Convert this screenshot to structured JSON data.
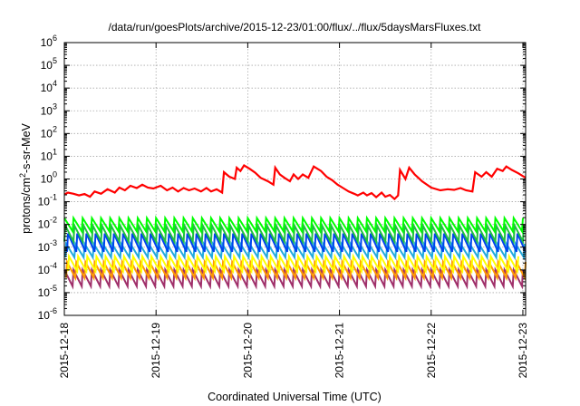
{
  "chart_data": {
    "type": "line",
    "title": "/data/run/goesPlots/archive/2015-12-23/01:00/flux/../flux/5daysMarsFluxes.txt",
    "xlabel": "Coordinated Universal Time (UTC)",
    "ylabel": {
      "base": "protons/cm",
      "sup": "2",
      "rest": "-s-sr-MeV"
    },
    "yscale": "log",
    "ylim": [
      -6,
      6
    ],
    "y_ticks": [
      {
        "base": "10",
        "exp": "6",
        "value": 6
      },
      {
        "base": "10",
        "exp": "5",
        "value": 5
      },
      {
        "base": "10",
        "exp": "4",
        "value": 4
      },
      {
        "base": "10",
        "exp": "3",
        "value": 3
      },
      {
        "base": "10",
        "exp": "2",
        "value": 2
      },
      {
        "base": "10",
        "exp": "1",
        "value": 1
      },
      {
        "base": "10",
        "exp": "0",
        "value": 0
      },
      {
        "base": "10",
        "exp": "-1",
        "value": -1
      },
      {
        "base": "10",
        "exp": "-2",
        "value": -2
      },
      {
        "base": "10",
        "exp": "-3",
        "value": -3
      },
      {
        "base": "10",
        "exp": "-4",
        "value": -4
      },
      {
        "base": "10",
        "exp": "-5",
        "value": -5
      },
      {
        "base": "10",
        "exp": "-6",
        "value": -6
      }
    ],
    "xlim": [
      0,
      5.03
    ],
    "x_ticks": [
      {
        "label": "2015-12-18",
        "value": 0
      },
      {
        "label": "2015-12-19",
        "value": 1
      },
      {
        "label": "2015-12-20",
        "value": 2
      },
      {
        "label": "2015-12-21",
        "value": 3
      },
      {
        "label": "2015-12-22",
        "value": 4
      },
      {
        "label": "2015-12-23",
        "value": 5
      }
    ],
    "grid": true,
    "series": [
      {
        "color": "#ff0000",
        "points": [
          [
            0.0,
            -0.68
          ],
          [
            0.04,
            -0.6
          ],
          [
            0.1,
            -0.65
          ],
          [
            0.16,
            -0.72
          ],
          [
            0.22,
            -0.66
          ],
          [
            0.28,
            -0.78
          ],
          [
            0.33,
            -0.55
          ],
          [
            0.4,
            -0.65
          ],
          [
            0.47,
            -0.45
          ],
          [
            0.55,
            -0.6
          ],
          [
            0.6,
            -0.38
          ],
          [
            0.66,
            -0.5
          ],
          [
            0.72,
            -0.3
          ],
          [
            0.79,
            -0.4
          ],
          [
            0.85,
            -0.25
          ],
          [
            0.91,
            -0.38
          ],
          [
            0.97,
            -0.42
          ],
          [
            1.05,
            -0.3
          ],
          [
            1.12,
            -0.5
          ],
          [
            1.18,
            -0.38
          ],
          [
            1.24,
            -0.55
          ],
          [
            1.3,
            -0.4
          ],
          [
            1.36,
            -0.5
          ],
          [
            1.42,
            -0.42
          ],
          [
            1.49,
            -0.55
          ],
          [
            1.55,
            -0.4
          ],
          [
            1.6,
            -0.55
          ],
          [
            1.66,
            -0.45
          ],
          [
            1.72,
            -0.6
          ],
          [
            1.74,
            0.3
          ],
          [
            1.8,
            0.1
          ],
          [
            1.86,
            0.0
          ],
          [
            1.88,
            0.5
          ],
          [
            1.92,
            0.35
          ],
          [
            1.96,
            0.6
          ],
          [
            2.02,
            0.45
          ],
          [
            2.08,
            0.28
          ],
          [
            2.14,
            0.05
          ],
          [
            2.22,
            -0.1
          ],
          [
            2.28,
            -0.25
          ],
          [
            2.3,
            0.5
          ],
          [
            2.35,
            0.2
          ],
          [
            2.4,
            0.05
          ],
          [
            2.46,
            -0.1
          ],
          [
            2.5,
            0.2
          ],
          [
            2.55,
            0.0
          ],
          [
            2.6,
            0.2
          ],
          [
            2.66,
            0.05
          ],
          [
            2.72,
            0.55
          ],
          [
            2.8,
            0.35
          ],
          [
            2.86,
            0.1
          ],
          [
            2.92,
            -0.05
          ],
          [
            2.98,
            -0.25
          ],
          [
            3.04,
            -0.4
          ],
          [
            3.1,
            -0.55
          ],
          [
            3.16,
            -0.65
          ],
          [
            3.2,
            -0.72
          ],
          [
            3.26,
            -0.6
          ],
          [
            3.3,
            -0.72
          ],
          [
            3.35,
            -0.62
          ],
          [
            3.4,
            -0.8
          ],
          [
            3.46,
            -0.6
          ],
          [
            3.5,
            -0.78
          ],
          [
            3.55,
            -0.7
          ],
          [
            3.6,
            -0.88
          ],
          [
            3.64,
            -0.72
          ],
          [
            3.66,
            0.4
          ],
          [
            3.72,
            0.0
          ],
          [
            3.76,
            0.5
          ],
          [
            3.82,
            0.2
          ],
          [
            3.86,
            0.05
          ],
          [
            3.9,
            -0.1
          ],
          [
            4.0,
            -0.38
          ],
          [
            4.1,
            -0.5
          ],
          [
            4.18,
            -0.45
          ],
          [
            4.25,
            -0.48
          ],
          [
            4.32,
            -0.4
          ],
          [
            4.38,
            -0.5
          ],
          [
            4.45,
            -0.55
          ],
          [
            4.48,
            0.3
          ],
          [
            4.55,
            0.1
          ],
          [
            4.6,
            0.3
          ],
          [
            4.66,
            0.1
          ],
          [
            4.72,
            0.45
          ],
          [
            4.78,
            0.35
          ],
          [
            4.82,
            0.55
          ],
          [
            4.88,
            0.4
          ],
          [
            4.95,
            0.25
          ],
          [
            5.03,
            0.05
          ]
        ]
      }
    ]
  }
}
